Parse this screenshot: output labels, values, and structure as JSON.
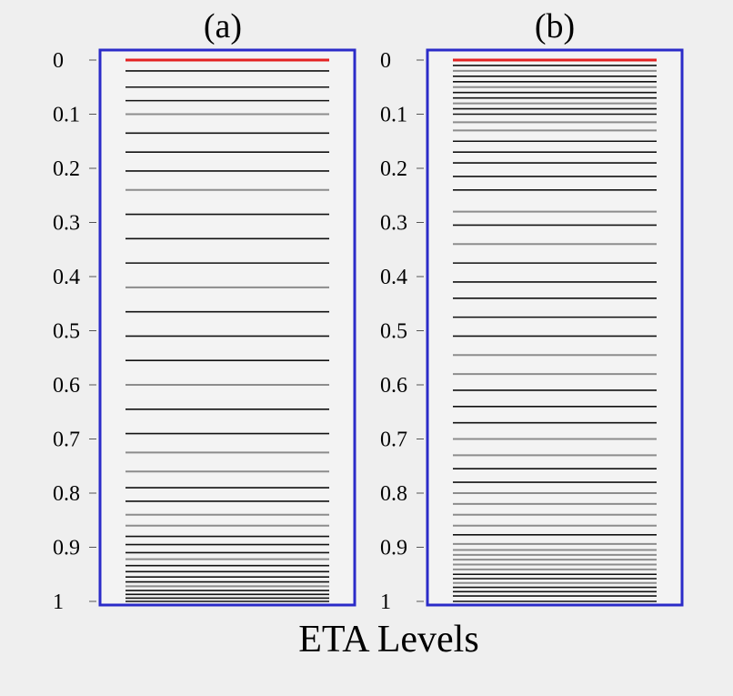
{
  "xlabel": "ETA Levels",
  "colors": {
    "background": "#efefef",
    "panel_fill": "#f3f3f3",
    "panel_border": "#2b2bc8",
    "top_level": "#e32222",
    "level_dark": "#111111",
    "level_gray": "#8c8c8c"
  },
  "chart_data": [
    {
      "type": "line",
      "title": "(a)",
      "ylabel": "",
      "ylim": [
        0,
        1
      ],
      "y_inverted": true,
      "yticks": [
        "0",
        "0.1",
        "0.2",
        "0.3",
        "0.4",
        "0.5",
        "0.6",
        "0.7",
        "0.8",
        "0.9",
        "1"
      ],
      "levels": [
        0,
        0.02,
        0.05,
        0.075,
        0.1,
        0.135,
        0.17,
        0.205,
        0.24,
        0.285,
        0.33,
        0.375,
        0.42,
        0.465,
        0.51,
        0.555,
        0.6,
        0.645,
        0.69,
        0.725,
        0.76,
        0.79,
        0.815,
        0.84,
        0.86,
        0.88,
        0.895,
        0.91,
        0.922,
        0.934,
        0.945,
        0.955,
        0.964,
        0.972,
        0.98,
        0.987,
        0.994,
        1.0
      ],
      "gray_levels": [
        0.1,
        0.24,
        0.42,
        0.6,
        0.725,
        0.76,
        0.84,
        0.86,
        0.922,
        0.972
      ]
    },
    {
      "type": "line",
      "title": "(b)",
      "ylabel": "",
      "ylim": [
        0,
        1
      ],
      "y_inverted": true,
      "yticks": [
        "0",
        "0.1",
        "0.2",
        "0.3",
        "0.4",
        "0.5",
        "0.6",
        "0.7",
        "0.8",
        "0.9",
        "1"
      ],
      "levels": [
        0,
        0.01,
        0.02,
        0.03,
        0.04,
        0.05,
        0.06,
        0.07,
        0.08,
        0.09,
        0.1,
        0.115,
        0.13,
        0.15,
        0.17,
        0.19,
        0.215,
        0.24,
        0.28,
        0.305,
        0.34,
        0.375,
        0.41,
        0.44,
        0.475,
        0.51,
        0.545,
        0.58,
        0.61,
        0.64,
        0.67,
        0.7,
        0.73,
        0.755,
        0.78,
        0.8,
        0.82,
        0.84,
        0.86,
        0.877,
        0.894,
        0.905,
        0.914,
        0.923,
        0.932,
        0.941,
        0.95,
        0.958,
        0.966,
        0.974,
        0.982,
        0.99,
        1.0
      ],
      "gray_levels": [
        0.02,
        0.05,
        0.08,
        0.115,
        0.13,
        0.28,
        0.34,
        0.545,
        0.58,
        0.7,
        0.73,
        0.8,
        0.82,
        0.84,
        0.86,
        0.894,
        0.905,
        0.914,
        0.923,
        0.932,
        0.941,
        0.966
      ]
    }
  ]
}
